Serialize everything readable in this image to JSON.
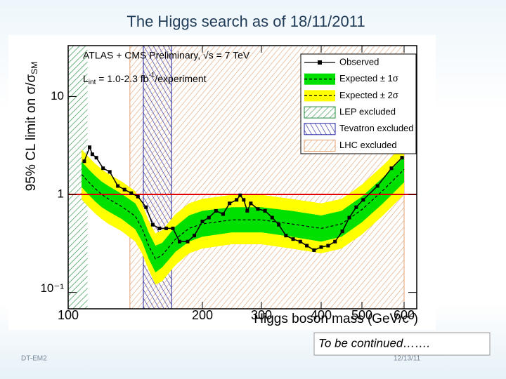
{
  "slide": {
    "title": "The Higgs search as of 18/11/2011",
    "note": "To be continued…….",
    "footer_left": "DT-EM2",
    "footer_right": "12/13/11"
  },
  "chart_data": {
    "type": "line",
    "annotation_1": "ATLAS + CMS Preliminary, √s = 7 TeV",
    "annotation_2": [
      "L",
      "int",
      " = 1.0-2.3 fb",
      "-1",
      "/experiment"
    ],
    "x_label": [
      "Higgs boson mass (GeV/c",
      "2",
      ")"
    ],
    "y_label": [
      "95% CL limit on σ/σ",
      "SM"
    ],
    "xlim": [
      100,
      630
    ],
    "xticks": [
      100,
      200,
      300,
      400,
      500,
      600
    ],
    "ylim": [
      0.068,
      33
    ],
    "yscale": "log",
    "yticks": [
      {
        "value": 0.1,
        "label": "10⁻¹"
      },
      1,
      10
    ],
    "reference_line": {
      "value": 1,
      "color": "#e00000"
    },
    "legend": "upper right",
    "series": [
      {
        "name": "Observed",
        "color": "#000000",
        "x": [
          112,
          116,
          118,
          121,
          126,
          131,
          137,
          142,
          147,
          152,
          158,
          163,
          168,
          173,
          178,
          183,
          189,
          194,
          200,
          211,
          223,
          235,
          246,
          258,
          264,
          270,
          276,
          282,
          294,
          306,
          318,
          329,
          341,
          353,
          365,
          376,
          388,
          400,
          417,
          434,
          452,
          469,
          486,
          503,
          537,
          570,
          595
        ],
        "values": [
          2.18,
          3.03,
          2.57,
          2.37,
          1.85,
          1.7,
          1.22,
          1.12,
          1.03,
          0.95,
          0.74,
          0.49,
          0.45,
          0.45,
          0.45,
          0.33,
          0.33,
          0.38,
          0.53,
          0.58,
          0.68,
          0.63,
          0.81,
          0.88,
          0.98,
          0.88,
          0.68,
          0.81,
          0.71,
          0.68,
          0.58,
          0.49,
          0.38,
          0.35,
          0.33,
          0.3,
          0.27,
          0.29,
          0.3,
          0.33,
          0.42,
          0.58,
          0.74,
          0.88,
          1.22,
          1.85,
          2.37
        ]
      },
      {
        "name": "Expected ± 1σ",
        "color": "#00e000",
        "x": [
          110,
          115,
          120,
          125,
          130,
          140,
          150,
          155,
          160,
          165,
          170,
          180,
          190,
          200,
          250,
          300,
          350,
          400,
          450,
          500,
          550,
          600
        ],
        "values": [
          1.6,
          1.35,
          1.15,
          1.0,
          0.9,
          0.75,
          0.6,
          0.45,
          0.3,
          0.22,
          0.24,
          0.35,
          0.45,
          0.5,
          0.55,
          0.55,
          0.5,
          0.45,
          0.5,
          0.7,
          1.1,
          1.8
        ],
        "high": [
          2.16,
          1.82,
          1.55,
          1.35,
          1.22,
          1.01,
          0.81,
          0.61,
          0.41,
          0.3,
          0.32,
          0.47,
          0.61,
          0.68,
          0.74,
          0.74,
          0.68,
          0.61,
          0.68,
          0.95,
          1.49,
          2.43
        ],
        "low": [
          1.19,
          1.0,
          0.85,
          0.74,
          0.67,
          0.56,
          0.44,
          0.33,
          0.22,
          0.16,
          0.18,
          0.26,
          0.33,
          0.37,
          0.41,
          0.41,
          0.37,
          0.33,
          0.37,
          0.52,
          0.81,
          1.33
        ]
      },
      {
        "name": "Expected ± 2σ",
        "color": "#ffff00",
        "x": [
          110,
          115,
          120,
          125,
          130,
          140,
          150,
          155,
          160,
          165,
          170,
          180,
          190,
          200,
          250,
          300,
          350,
          400,
          450,
          500,
          550,
          600
        ],
        "high": [
          2.88,
          2.43,
          2.07,
          1.8,
          1.62,
          1.35,
          1.08,
          0.81,
          0.54,
          0.4,
          0.43,
          0.63,
          0.81,
          0.9,
          0.99,
          0.99,
          0.9,
          0.81,
          0.9,
          1.26,
          1.98,
          3.24
        ],
        "low": [
          0.89,
          0.75,
          0.64,
          0.56,
          0.5,
          0.42,
          0.33,
          0.25,
          0.17,
          0.12,
          0.13,
          0.19,
          0.25,
          0.28,
          0.31,
          0.31,
          0.28,
          0.25,
          0.28,
          0.39,
          0.61,
          1.0
        ]
      }
    ],
    "regions": [
      {
        "name": "LEP excluded",
        "color": "#1a8a3a",
        "range": [
          100,
          114.4
        ]
      },
      {
        "name": "Tevatron excluded",
        "color": "#2020a0",
        "range": [
          156,
          177
        ]
      },
      {
        "name": "LHC excluded",
        "color": "#e0a070",
        "range": [
          146,
          600
        ]
      }
    ]
  }
}
